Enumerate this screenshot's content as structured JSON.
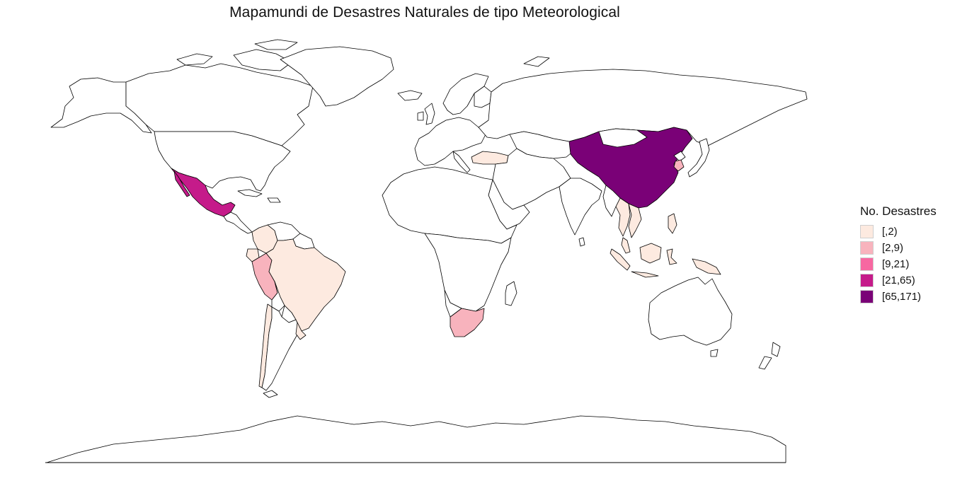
{
  "title": "Mapamundi de Desastres Naturales de tipo Meteorological",
  "legend": {
    "title": "No. Desastres",
    "items": [
      {
        "label": "[,2)",
        "color": "#fdeae0"
      },
      {
        "label": "[2,9)",
        "color": "#f8b3bd"
      },
      {
        "label": "[9,21)",
        "color": "#f768a1"
      },
      {
        "label": "[21,65)",
        "color": "#c51b8a"
      },
      {
        "label": "[65,171)",
        "color": "#7a0177"
      }
    ]
  },
  "colors": {
    "land": "#ffffff",
    "border": "#000000",
    "background": "#ffffff"
  },
  "highlighted_countries": [
    {
      "name": "China",
      "class": "[65,171)"
    },
    {
      "name": "Mexico",
      "class": "[21,65)"
    },
    {
      "name": "South Korea",
      "class": "[2,9)"
    },
    {
      "name": "South Africa",
      "class": "[2,9)"
    },
    {
      "name": "Peru",
      "class": "[2,9)"
    },
    {
      "name": "Brazil",
      "class": "[,2)"
    },
    {
      "name": "Colombia",
      "class": "[,2)"
    },
    {
      "name": "Ecuador",
      "class": "[,2)"
    },
    {
      "name": "Uruguay",
      "class": "[,2)"
    },
    {
      "name": "Chile",
      "class": "[,2)"
    },
    {
      "name": "Turkey",
      "class": "[,2)"
    },
    {
      "name": "Indonesia",
      "class": "[,2)"
    },
    {
      "name": "Malaysia",
      "class": "[,2)"
    },
    {
      "name": "Thailand",
      "class": "[,2)"
    },
    {
      "name": "Vietnam",
      "class": "[,2)"
    },
    {
      "name": "Philippines",
      "class": "[,2)"
    },
    {
      "name": "Papua New Guinea",
      "class": "[,2)"
    }
  ]
}
